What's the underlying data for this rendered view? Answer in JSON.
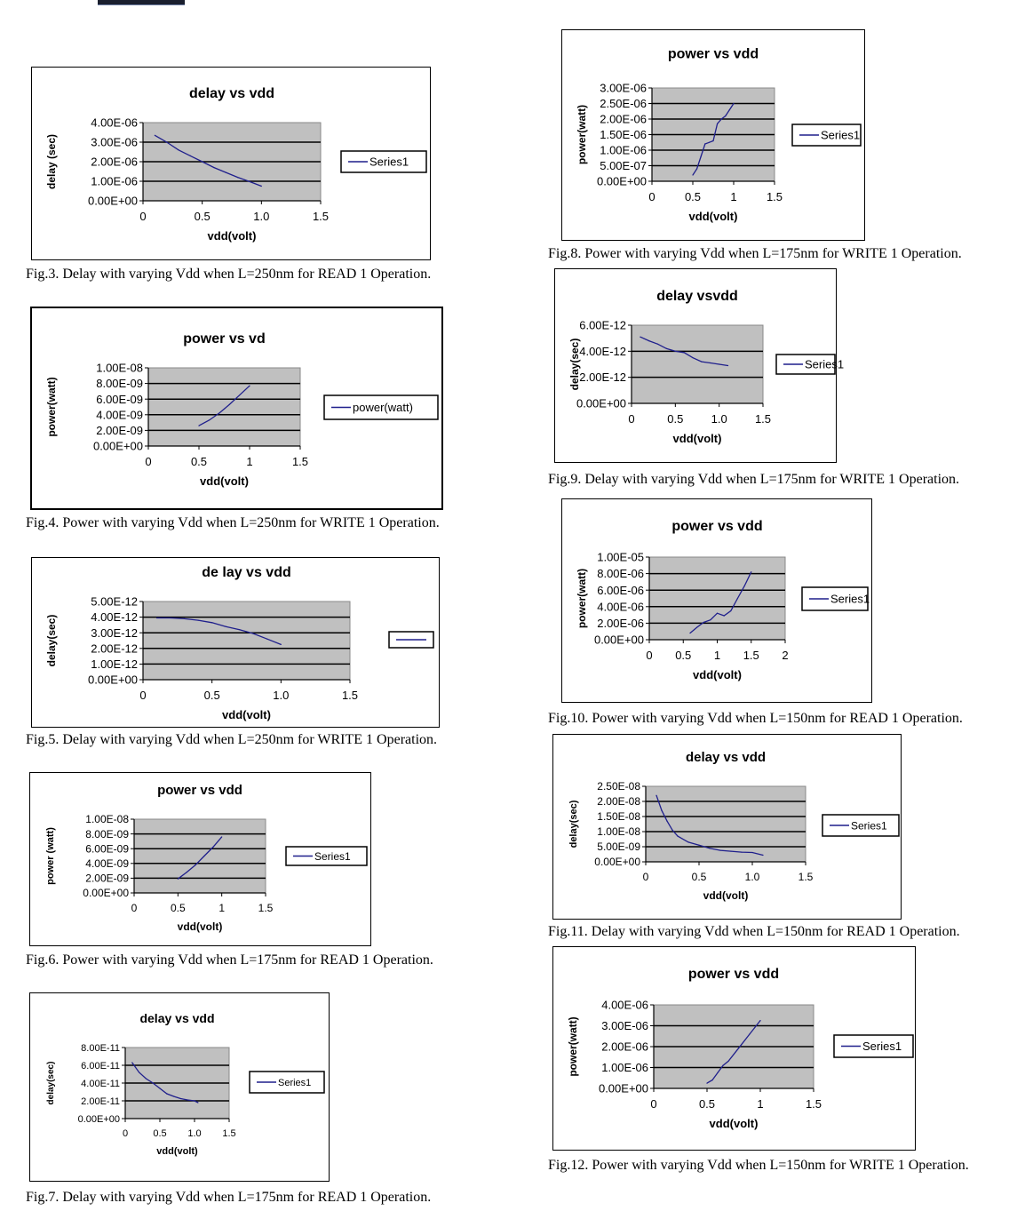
{
  "figures": [
    {
      "caption": "Fig.3. Delay with varying Vdd when L=250nm for READ 1 Operation.",
      "chart_data": {
        "type": "line",
        "title": "delay vs vdd",
        "xlabel": "vdd(volt)",
        "ylabel": "delay (sec)",
        "xlim": [
          0,
          1.5
        ],
        "ylim": [
          0,
          4e-06
        ],
        "xticks": [
          "0",
          "0.5",
          "1.0",
          "1.5"
        ],
        "yticks": [
          "0.00E+00",
          "1.00E-06",
          "2.00E-06",
          "3.00E-06",
          "4.00E-06"
        ],
        "grid": true,
        "legend": "right",
        "series": [
          {
            "name": "Series1",
            "x": [
              0.1,
              0.2,
              0.3,
              0.4,
              0.5,
              0.6,
              0.7,
              0.8,
              0.9,
              1.0
            ],
            "y": [
              3.35e-06,
              3e-06,
              2.6e-06,
              2.3e-06,
              2e-06,
              1.7e-06,
              1.45e-06,
              1.2e-06,
              9.8e-07,
              7.5e-07
            ]
          }
        ]
      }
    },
    {
      "caption": "Fig.4. Power with varying Vdd when L=250nm for WRITE 1 Operation.",
      "chart_data": {
        "type": "line",
        "title": "power vs vd",
        "xlabel": "vdd(volt)",
        "ylabel": "power(watt)",
        "xlim": [
          0,
          1.5
        ],
        "ylim": [
          0,
          1e-08
        ],
        "xticks": [
          "0",
          "0.5",
          "1",
          "1.5"
        ],
        "yticks": [
          "0.00E+00",
          "2.00E-09",
          "4.00E-09",
          "6.00E-09",
          "8.00E-09",
          "1.00E-08"
        ],
        "grid": true,
        "legend": "right",
        "series": [
          {
            "name": "power(watt)",
            "x": [
              0.5,
              0.6,
              0.7,
              0.8,
              0.9,
              1.0
            ],
            "y": [
              2.6e-09,
              3.3e-09,
              4.2e-09,
              5.3e-09,
              6.5e-09,
              7.7e-09
            ]
          }
        ]
      }
    },
    {
      "caption": "Fig.5. Delay with varying Vdd when L=250nm for WRITE 1 Operation.",
      "chart_data": {
        "type": "line",
        "title": "de lay vs vdd",
        "xlabel": "vdd(volt)",
        "ylabel": "delay(sec)",
        "xlim": [
          0,
          1.5
        ],
        "ylim": [
          0,
          5e-12
        ],
        "xticks": [
          "0",
          "0.5",
          "1.0",
          "1.5"
        ],
        "yticks": [
          "0.00E+00",
          "1.00E-12",
          "2.00E-12",
          "3.00E-12",
          "4.00E-12",
          "5.00E-12"
        ],
        "grid": true,
        "legend": "right",
        "series": [
          {
            "name": "",
            "x": [
              0.1,
              0.2,
              0.3,
              0.4,
              0.5,
              0.6,
              0.7,
              0.8,
              0.9,
              1.0
            ],
            "y": [
              3.95e-12,
              3.95e-12,
              3.9e-12,
              3.8e-12,
              3.65e-12,
              3.4e-12,
              3.2e-12,
              2.95e-12,
              2.6e-12,
              2.25e-12
            ]
          }
        ]
      }
    },
    {
      "caption": "Fig.6. Power with varying Vdd when L=175nm for READ 1 Operation.",
      "chart_data": {
        "type": "line",
        "title": "power vs vdd",
        "xlabel": "vdd(volt)",
        "ylabel": "power (watt)",
        "xlim": [
          0,
          1.5
        ],
        "ylim": [
          0,
          1e-08
        ],
        "xticks": [
          "0",
          "0.5",
          "1",
          "1.5"
        ],
        "yticks": [
          "0.00E+00",
          "2.00E-09",
          "4.00E-09",
          "6.00E-09",
          "8.00E-09",
          "1.00E-08"
        ],
        "grid": true,
        "legend": "right",
        "series": [
          {
            "name": "Series1",
            "x": [
              0.5,
              0.6,
              0.7,
              0.8,
              0.9,
              1.0
            ],
            "y": [
              1.9e-09,
              2.8e-09,
              3.8e-09,
              5e-09,
              6.2e-09,
              7.6e-09
            ]
          }
        ]
      }
    },
    {
      "caption": "Fig.7. Delay with varying Vdd when L=175nm for READ 1 Operation.",
      "chart_data": {
        "type": "line",
        "title": "delay vs vdd",
        "xlabel": "vdd(volt)",
        "ylabel": "delay(sec)",
        "xlim": [
          0,
          1.5
        ],
        "ylim": [
          0,
          8e-11
        ],
        "xticks": [
          "0",
          "0.5",
          "1.0",
          "1.5"
        ],
        "yticks": [
          "0.00E+00",
          "2.00E-11",
          "4.00E-11",
          "6.00E-11",
          "8.00E-11"
        ],
        "grid": true,
        "legend": "right",
        "series": [
          {
            "name": "Series1",
            "x": [
              0.1,
              0.2,
              0.3,
              0.4,
              0.5,
              0.6,
              0.7,
              0.8,
              0.9,
              1.0,
              1.05
            ],
            "y": [
              6.3e-11,
              5.2e-11,
              4.5e-11,
              4e-11,
              3.4e-11,
              2.8e-11,
              2.5e-11,
              2.25e-11,
              2.1e-11,
              2e-11,
              1.8e-11
            ]
          }
        ]
      }
    },
    {
      "caption": "Fig.8. Power with varying Vdd when L=175nm for WRITE 1 Operation.",
      "chart_data": {
        "type": "line",
        "title": "power vs vdd",
        "xlabel": "vdd(volt)",
        "ylabel": "power(watt)",
        "xlim": [
          0,
          1.5
        ],
        "ylim": [
          0,
          3e-06
        ],
        "xticks": [
          "0",
          "0.5",
          "1",
          "1.5"
        ],
        "yticks": [
          "0.00E+00",
          "5.00E-07",
          "1.00E-06",
          "1.50E-06",
          "2.00E-06",
          "2.50E-06",
          "3.00E-06"
        ],
        "grid": true,
        "legend": "right",
        "series": [
          {
            "name": "Series1",
            "x": [
              0.5,
              0.55,
              0.6,
              0.65,
              0.7,
              0.75,
              0.8,
              0.85,
              0.9,
              0.95,
              1.0
            ],
            "y": [
              2e-07,
              4e-07,
              8e-07,
              1.2e-06,
              1.25e-06,
              1.3e-06,
              1.85e-06,
              2e-06,
              2.1e-06,
              2.3e-06,
              2.5e-06
            ]
          }
        ]
      }
    },
    {
      "caption": "Fig.9. Delay with varying Vdd when L=175nm for WRITE 1 Operation.",
      "chart_data": {
        "type": "line",
        "title": "delay vsvdd",
        "xlabel": "vdd(volt)",
        "ylabel": "delay(sec)",
        "xlim": [
          0,
          1.5
        ],
        "ylim": [
          0,
          6e-12
        ],
        "xticks": [
          "0",
          "0.5",
          "1.0",
          "1.5"
        ],
        "yticks": [
          "0.00E+00",
          "2.00E-12",
          "4.00E-12",
          "6.00E-12"
        ],
        "grid": true,
        "legend": "right",
        "series": [
          {
            "name": "Series1",
            "x": [
              0.1,
              0.2,
              0.3,
              0.4,
              0.5,
              0.6,
              0.7,
              0.8,
              0.9,
              1.0,
              1.1
            ],
            "y": [
              5.1e-12,
              4.8e-12,
              4.55e-12,
              4.2e-12,
              4e-12,
              3.9e-12,
              3.5e-12,
              3.2e-12,
              3.1e-12,
              3e-12,
              2.9e-12
            ]
          }
        ]
      }
    },
    {
      "caption": "Fig.10. Power with varying Vdd when L=150nm for READ 1 Operation.",
      "chart_data": {
        "type": "line",
        "title": "power vs vdd",
        "xlabel": "vdd(volt)",
        "ylabel": "power(watt)",
        "xlim": [
          0,
          2
        ],
        "ylim": [
          0,
          1e-05
        ],
        "xticks": [
          "0",
          "0.5",
          "1",
          "1.5",
          "2"
        ],
        "yticks": [
          "0.00E+00",
          "2.00E-06",
          "4.00E-06",
          "6.00E-06",
          "8.00E-06",
          "1.00E-05"
        ],
        "grid": true,
        "legend": "right",
        "series": [
          {
            "name": "Series1",
            "x": [
              0.6,
              0.7,
              0.8,
              0.9,
              1.0,
              1.1,
              1.2,
              1.3,
              1.4,
              1.5
            ],
            "y": [
              8e-07,
              1.5e-06,
              2.1e-06,
              2.4e-06,
              3.2e-06,
              2.9e-06,
              3.5e-06,
              5e-06,
              6.5e-06,
              8.2e-06
            ]
          }
        ]
      }
    },
    {
      "caption": "Fig.11. Delay with varying Vdd when L=150nm for READ 1 Operation.",
      "chart_data": {
        "type": "line",
        "title": "delay vs vdd",
        "xlabel": "vdd(volt)",
        "ylabel": "delay(sec)",
        "xlim": [
          0,
          1.5
        ],
        "ylim": [
          0,
          2.5e-08
        ],
        "xticks": [
          "0",
          "0.5",
          "1.0",
          "1.5"
        ],
        "yticks": [
          "0.00E+00",
          "5.00E-09",
          "1.00E-08",
          "1.50E-08",
          "2.00E-08",
          "2.50E-08"
        ],
        "grid": true,
        "legend": "right",
        "series": [
          {
            "name": "Series1",
            "x": [
              0.1,
              0.15,
              0.2,
              0.25,
              0.3,
              0.4,
              0.5,
              0.6,
              0.7,
              0.8,
              0.9,
              1.0,
              1.1
            ],
            "y": [
              2.2e-08,
              1.7e-08,
              1.35e-08,
              1.05e-08,
              8.5e-09,
              6.5e-09,
              5.5e-09,
              4.5e-09,
              3.8e-09,
              3.5e-09,
              3.2e-09,
              3.1e-09,
              2.2e-09
            ]
          }
        ]
      }
    },
    {
      "caption": "Fig.12. Power with varying Vdd when L=150nm for WRITE 1 Operation.",
      "chart_data": {
        "type": "line",
        "title": "power vs vdd",
        "xlabel": "vdd(volt)",
        "ylabel": "power(watt)",
        "xlim": [
          0,
          1.5
        ],
        "ylim": [
          0,
          4e-06
        ],
        "xticks": [
          "0",
          "0.5",
          "1",
          "1.5"
        ],
        "yticks": [
          "0.00E+00",
          "1.00E-06",
          "2.00E-06",
          "3.00E-06",
          "4.00E-06"
        ],
        "grid": true,
        "legend": "right",
        "series": [
          {
            "name": "Series1",
            "x": [
              0.5,
              0.55,
              0.6,
              0.65,
              0.7,
              0.8,
              0.9,
              1.0
            ],
            "y": [
              2.5e-07,
              4e-07,
              7.5e-07,
              1.1e-06,
              1.3e-06,
              1.95e-06,
              2.6e-06,
              3.25e-06
            ]
          }
        ]
      }
    }
  ],
  "style": {
    "line_color": "#1f1f8c",
    "plot_bg": "#c0c0c0",
    "grid_color": "#000000"
  }
}
